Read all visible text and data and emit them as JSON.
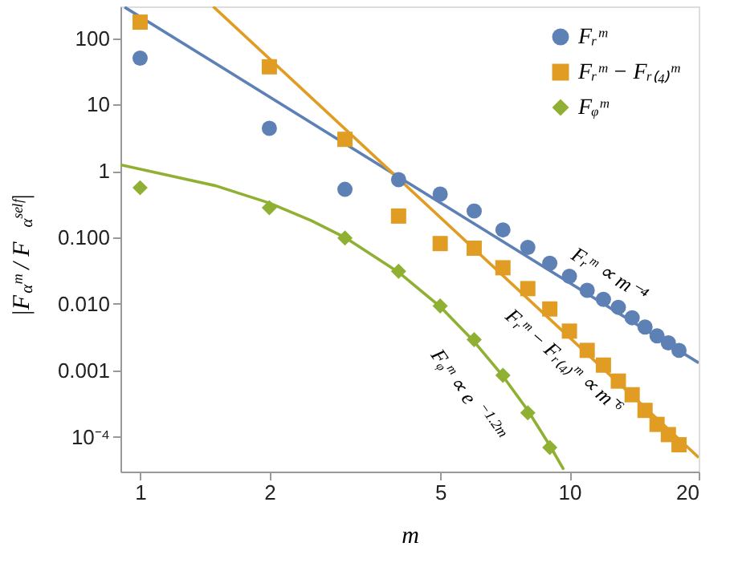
{
  "chart_data": {
    "type": "scatter",
    "xlabel": "m",
    "ylabel": "|F$_{α}$ᵐ / F$_{α}$ˢᵉˡᶠ|",
    "log": "xy",
    "xlim": [
      0.9,
      20
    ],
    "ylim": [
      3e-05,
      300
    ],
    "xticks": [
      1,
      2,
      5,
      10,
      20
    ],
    "yticks": [
      100,
      10,
      1,
      {
        "value": 0.1,
        "label": "0.100"
      },
      {
        "value": 0.01,
        "label": "0.010"
      },
      0.001,
      {
        "value": 0.0001,
        "label": "10⁻⁴"
      }
    ],
    "grid": false,
    "legend": "top right",
    "series": [
      {
        "name": "Fᵣᵐ",
        "color": "#5e81b5",
        "marker": "circle",
        "x": [
          1,
          2,
          3,
          4,
          5,
          6,
          7,
          8,
          9,
          10,
          11,
          12,
          13,
          14,
          15,
          16,
          17,
          18
        ],
        "values": [
          50,
          4.4,
          0.53,
          0.74,
          0.45,
          0.25,
          0.13,
          0.071,
          0.041,
          0.026,
          0.016,
          0.0117,
          0.0089,
          0.0062,
          0.0045,
          0.0033,
          0.0026,
          0.002
        ]
      },
      {
        "name": "Fᵣᵐ − Fᵣ₍₄₎ᵐ",
        "color": "#e19c24",
        "marker": "square",
        "x": [
          1,
          2,
          3,
          4,
          5,
          6,
          7,
          8,
          9,
          10,
          11,
          12,
          13,
          14,
          15,
          16,
          17,
          18
        ],
        "values": [
          174,
          37,
          3.0,
          0.21,
          0.081,
          0.069,
          0.035,
          0.017,
          0.0084,
          0.0039,
          0.002,
          0.0012,
          0.00069,
          0.00043,
          0.00025,
          0.000154,
          0.000108,
          7.6e-05
        ]
      },
      {
        "name": "Fᵩᵐ",
        "color": "#8fb032",
        "marker": "diamond",
        "x": [
          1,
          2,
          3,
          4,
          5,
          6,
          7,
          8,
          9
        ],
        "values": [
          0.56,
          0.28,
          0.098,
          0.031,
          0.0093,
          0.0029,
          0.00084,
          0.00023,
          6.9e-05
        ]
      },
      {
        "type": "line",
        "color": "#5e81b5",
        "x": [
          0.92,
          20
        ],
        "values": [
          293,
          0.0013
        ]
      },
      {
        "type": "line",
        "color": "#e19c24",
        "x": [
          1.48,
          20
        ],
        "values": [
          299,
          4.9e-05
        ]
      },
      {
        "type": "line",
        "color": "#8fb032",
        "x": [
          0.9,
          1.5,
          2,
          2.5,
          3,
          4,
          5,
          6,
          7,
          8,
          9,
          9.7
        ],
        "values": [
          1.24,
          0.6,
          0.33,
          0.18,
          0.1,
          0.03,
          0.0091,
          0.0027,
          0.00082,
          0.00025,
          7.4e-05,
          3.2e-05
        ]
      }
    ],
    "annotations": [
      "Fᵣᵐ ∝ m⁻⁴",
      "Fᵣᵐ − Fᵣ₍₄₎ᵐ ∝ m⁻⁶",
      "Fᵩᵐ ∝ e$^{−1.2m}$"
    ]
  }
}
